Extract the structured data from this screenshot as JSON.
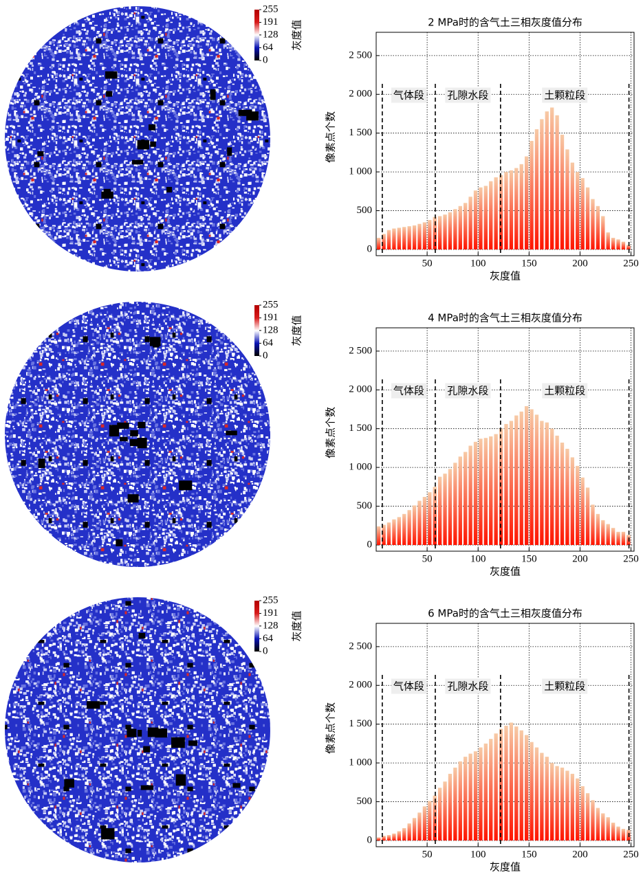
{
  "colorbars": [
    {
      "ticks": [
        0,
        64,
        128,
        191,
        255
      ],
      "label": "灰度值"
    },
    {
      "ticks": [
        0,
        64,
        128,
        191,
        255
      ],
      "label": "灰度值"
    },
    {
      "ticks": [
        0,
        64,
        128,
        191,
        255
      ],
      "label": "灰度值"
    }
  ],
  "chart_data": [
    {
      "type": "bar",
      "title": "2 MPa时的含气土三相灰度值分布",
      "xlabel": "灰度值",
      "ylabel": "像素点个数",
      "color": "#ff1400",
      "color_top": "#f7caa6",
      "grid": true,
      "xlim": [
        0,
        253
      ],
      "ylim": [
        -80,
        2800
      ],
      "xticks": [
        50,
        100,
        150,
        200,
        250
      ],
      "yticks": [
        0,
        500,
        {
          "value": 1000,
          "label": "1 000"
        },
        {
          "value": 1500,
          "label": "1 500"
        },
        {
          "value": 2000,
          "label": "2 000"
        },
        {
          "value": 2500,
          "label": "2 500"
        }
      ],
      "dividers": [
        6,
        58,
        122,
        248
      ],
      "segments": [
        "气体段",
        "孔隙水段",
        "土颗粒段"
      ],
      "x": [
        2.5,
        7.5,
        12.5,
        17.5,
        22.5,
        27.5,
        32.5,
        37.5,
        42.5,
        47.5,
        52.5,
        57.5,
        62.5,
        67.5,
        72.5,
        77.5,
        82.5,
        87.5,
        92.5,
        97.5,
        102.5,
        107.5,
        112.5,
        117.5,
        122.5,
        127.5,
        132.5,
        137.5,
        142.5,
        147.5,
        152.5,
        157.5,
        162.5,
        167.5,
        172.5,
        177.5,
        182.5,
        187.5,
        192.5,
        197.5,
        202.5,
        207.5,
        212.5,
        217.5,
        222.5,
        227.5,
        232.5,
        237.5,
        242.5,
        247.5
      ],
      "values": [
        150,
        200,
        250,
        270,
        280,
        290,
        300,
        310,
        330,
        350,
        380,
        420,
        430,
        450,
        480,
        520,
        560,
        600,
        680,
        760,
        800,
        820,
        880,
        930,
        960,
        1000,
        1020,
        1050,
        1100,
        1200,
        1400,
        1550,
        1680,
        1780,
        1830,
        1730,
        1480,
        1290,
        1120,
        1000,
        920,
        800,
        650,
        560,
        430,
        220,
        150,
        130,
        100,
        60
      ]
    },
    {
      "type": "bar",
      "title": "4 MPa时的含气土三相灰度值分布",
      "xlabel": "灰度值",
      "ylabel": "像素点个数",
      "color": "#ff1400",
      "color_top": "#f7caa6",
      "grid": true,
      "xlim": [
        0,
        253
      ],
      "ylim": [
        -80,
        2800
      ],
      "xticks": [
        50,
        100,
        150,
        200,
        250
      ],
      "yticks": [
        0,
        500,
        {
          "value": 1000,
          "label": "1 000"
        },
        {
          "value": 1500,
          "label": "1 500"
        },
        {
          "value": 2000,
          "label": "2 000"
        },
        {
          "value": 2500,
          "label": "2 500"
        }
      ],
      "dividers": [
        6,
        58,
        122,
        248
      ],
      "segments": [
        "气体段",
        "孔隙水段",
        "土颗粒段"
      ],
      "x": [
        2.5,
        7.5,
        12.5,
        17.5,
        22.5,
        27.5,
        32.5,
        37.5,
        42.5,
        47.5,
        52.5,
        57.5,
        62.5,
        67.5,
        72.5,
        77.5,
        82.5,
        87.5,
        92.5,
        97.5,
        102.5,
        107.5,
        112.5,
        117.5,
        122.5,
        127.5,
        132.5,
        137.5,
        142.5,
        147.5,
        152.5,
        157.5,
        162.5,
        167.5,
        172.5,
        177.5,
        182.5,
        187.5,
        192.5,
        197.5,
        202.5,
        207.5,
        212.5,
        217.5,
        222.5,
        227.5,
        232.5,
        237.5,
        242.5,
        247.5
      ],
      "values": [
        240,
        260,
        290,
        330,
        360,
        400,
        450,
        510,
        570,
        620,
        680,
        750,
        880,
        920,
        980,
        1060,
        1140,
        1200,
        1280,
        1330,
        1370,
        1380,
        1400,
        1430,
        1500,
        1560,
        1600,
        1670,
        1720,
        1790,
        1750,
        1680,
        1600,
        1580,
        1500,
        1410,
        1320,
        1240,
        1130,
        1020,
        870,
        740,
        520,
        400,
        320,
        270,
        220,
        170,
        170,
        130
      ]
    },
    {
      "type": "bar",
      "title": "6 MPa时的含气土三相灰度值分布",
      "xlabel": "灰度值",
      "ylabel": "像素点个数",
      "color": "#ff1400",
      "color_top": "#f7caa6",
      "grid": true,
      "xlim": [
        0,
        253
      ],
      "ylim": [
        -80,
        2800
      ],
      "xticks": [
        50,
        100,
        150,
        200,
        250
      ],
      "yticks": [
        0,
        500,
        {
          "value": 1000,
          "label": "1 000"
        },
        {
          "value": 1500,
          "label": "1 500"
        },
        {
          "value": 2000,
          "label": "2 000"
        },
        {
          "value": 2500,
          "label": "2 500"
        }
      ],
      "dividers": [
        6,
        58,
        122,
        248
      ],
      "segments": [
        "气体段",
        "孔隙水段",
        "土颗粒段"
      ],
      "x": [
        2.5,
        7.5,
        12.5,
        17.5,
        22.5,
        27.5,
        32.5,
        37.5,
        42.5,
        47.5,
        52.5,
        57.5,
        62.5,
        67.5,
        72.5,
        77.5,
        82.5,
        87.5,
        92.5,
        97.5,
        102.5,
        107.5,
        112.5,
        117.5,
        122.5,
        127.5,
        132.5,
        137.5,
        142.5,
        147.5,
        152.5,
        157.5,
        162.5,
        167.5,
        172.5,
        177.5,
        182.5,
        187.5,
        192.5,
        197.5,
        202.5,
        207.5,
        212.5,
        217.5,
        222.5,
        227.5,
        232.5,
        237.5,
        242.5,
        247.5
      ],
      "values": [
        40,
        60,
        70,
        90,
        120,
        160,
        220,
        290,
        360,
        440,
        510,
        580,
        680,
        760,
        860,
        940,
        1020,
        1080,
        1120,
        1150,
        1200,
        1250,
        1310,
        1380,
        1440,
        1480,
        1520,
        1470,
        1420,
        1360,
        1270,
        1200,
        1130,
        1080,
        1000,
        960,
        940,
        900,
        860,
        800,
        700,
        610,
        520,
        420,
        350,
        300,
        230,
        180,
        150,
        140
      ]
    }
  ]
}
